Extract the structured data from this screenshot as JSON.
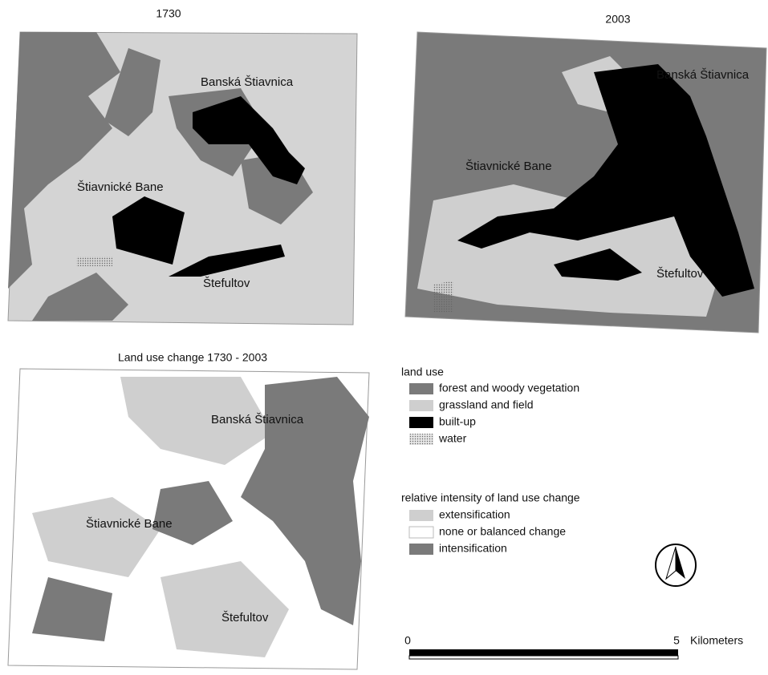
{
  "maps": [
    {
      "title": "1730",
      "places": [
        "Banská Štiavnica",
        "Štiavnické Bane",
        "Štefultov"
      ]
    },
    {
      "title": "2003",
      "places": [
        "Banská Štiavnica",
        "Štiavnické Bane",
        "Štefultov"
      ]
    },
    {
      "title": "Land use change 1730 - 2003",
      "places": [
        "Banská Štiavnica",
        "Štiavnické Bane",
        "Štefultov"
      ]
    }
  ],
  "legend_land_use": {
    "title": "land use",
    "items": [
      {
        "label": "forest and woody vegetation",
        "color": "#7a7a7a"
      },
      {
        "label": "grassland and field",
        "color": "#cfcfcf"
      },
      {
        "label": "built-up",
        "color": "#000000"
      },
      {
        "label": "water",
        "color": "#e6e6e6"
      }
    ]
  },
  "legend_change": {
    "title": "relative  intensity of  land use change",
    "items": [
      {
        "label": "extensification",
        "color": "#cfcfcf"
      },
      {
        "label": "none or balanced change",
        "color": "#ffffff"
      },
      {
        "label": "intensification",
        "color": "#7a7a7a"
      }
    ]
  },
  "scale_bar": {
    "start": 0,
    "end": 5,
    "unit": "Kilometers"
  }
}
